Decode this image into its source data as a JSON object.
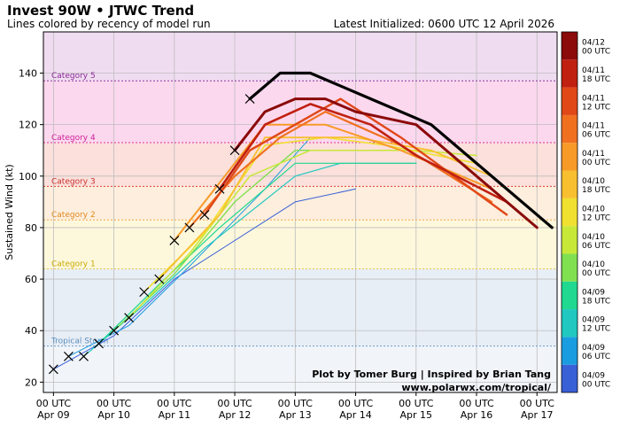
{
  "header": {
    "title": "Invest 90W • JTWC Trend",
    "subtitle": "Lines colored by recency of model run",
    "latest": "Latest Initialized: 0600 UTC 12 April 2026"
  },
  "credits": {
    "line1": "Plot by Tomer Burg | Inspired by Brian Tang",
    "line2": "www.polarwx.com/tropical/"
  },
  "chart_data": {
    "type": "line",
    "title": "Invest 90W • JTWC Trend",
    "ylabel": "Sustained Wind (kt)",
    "xlabel": "",
    "x_unit": "hours since 00 UTC Apr 09",
    "xlim": [
      -4,
      200
    ],
    "ylim": [
      16,
      156
    ],
    "x_ticks": [
      {
        "x": 0,
        "line1": "00 UTC",
        "line2": "Apr 09"
      },
      {
        "x": 24,
        "line1": "00 UTC",
        "line2": "Apr 10"
      },
      {
        "x": 48,
        "line1": "00 UTC",
        "line2": "Apr 11"
      },
      {
        "x": 72,
        "line1": "00 UTC",
        "line2": "Apr 12"
      },
      {
        "x": 96,
        "line1": "00 UTC",
        "line2": "Apr 13"
      },
      {
        "x": 120,
        "line1": "00 UTC",
        "line2": "Apr 14"
      },
      {
        "x": 144,
        "line1": "00 UTC",
        "line2": "Apr 15"
      },
      {
        "x": 168,
        "line1": "00 UTC",
        "line2": "Apr 16"
      },
      {
        "x": 192,
        "line1": "00 UTC",
        "line2": "Apr 17"
      }
    ],
    "y_ticks": [
      20,
      40,
      60,
      80,
      100,
      120,
      140
    ],
    "grid": true,
    "categories": [
      {
        "name": "Tropical Storm",
        "threshold": 34,
        "band": [
          34,
          64
        ],
        "band_color": "#e8eef5",
        "line_color": "#6a9bc8",
        "label_color": "#5b8fc0"
      },
      {
        "name": "Category 1",
        "threshold": 64,
        "band": [
          64,
          83
        ],
        "band_color": "#fdf8dc",
        "line_color": "#e6c84a",
        "label_color": "#c9a800"
      },
      {
        "name": "Category 2",
        "threshold": 83,
        "band": [
          83,
          96
        ],
        "band_color": "#fdeedd",
        "line_color": "#f2a54a",
        "label_color": "#e08a20"
      },
      {
        "name": "Category 3",
        "threshold": 96,
        "band": [
          96,
          113
        ],
        "band_color": "#fbe0dc",
        "line_color": "#e04030",
        "label_color": "#c8302a"
      },
      {
        "name": "Category 4",
        "threshold": 113,
        "band": [
          113,
          137
        ],
        "band_color": "#fbd8ee",
        "line_color": "#e030a0",
        "label_color": "#d0209a"
      },
      {
        "name": "Category 5",
        "threshold": 137,
        "band": [
          137,
          156
        ],
        "band_color": "#f0dcf0",
        "line_color": "#9030a0",
        "label_color": "#8a2a9a"
      }
    ],
    "below_ts_color": "#f1f5fa",
    "observed": {
      "marker": "x",
      "points": [
        [
          0,
          25
        ],
        [
          6,
          30
        ],
        [
          12,
          30
        ],
        [
          18,
          35
        ],
        [
          24,
          40
        ],
        [
          30,
          45
        ],
        [
          36,
          55
        ],
        [
          42,
          60
        ],
        [
          48,
          75
        ],
        [
          54,
          80
        ],
        [
          60,
          85
        ],
        [
          66,
          95
        ],
        [
          72,
          110
        ],
        [
          78,
          130
        ]
      ]
    },
    "colorbar": {
      "labels": [
        "04/09 00 UTC",
        "04/09 06 UTC",
        "04/09 12 UTC",
        "04/09 18 UTC",
        "04/10 00 UTC",
        "04/10 06 UTC",
        "04/10 12 UTC",
        "04/10 18 UTC",
        "04/11 00 UTC",
        "04/11 06 UTC",
        "04/11 12 UTC",
        "04/11 18 UTC",
        "04/12 00 UTC"
      ],
      "colors": [
        "#3a60d8",
        "#1a9ce0",
        "#20c8c0",
        "#20d890",
        "#80e050",
        "#c8e838",
        "#f0e030",
        "#f8c030",
        "#f89a28",
        "#f07020",
        "#e04818",
        "#c02010",
        "#8b0a0a"
      ]
    },
    "series": [
      {
        "run": "04/09 00 UTC",
        "color": "#3a60d8",
        "width": 1,
        "points": [
          [
            0,
            25
          ],
          [
            24,
            38
          ],
          [
            48,
            60
          ],
          [
            96,
            90
          ],
          [
            120,
            95
          ]
        ]
      },
      {
        "run": "04/09 06 UTC",
        "color": "#1a9ce0",
        "width": 1,
        "points": [
          [
            6,
            30
          ],
          [
            30,
            42
          ],
          [
            54,
            65
          ],
          [
            84,
            95
          ],
          [
            102,
            115
          ]
        ]
      },
      {
        "run": "04/09 12 UTC",
        "color": "#20c8c0",
        "width": 1.2,
        "points": [
          [
            12,
            30
          ],
          [
            36,
            50
          ],
          [
            60,
            72
          ],
          [
            96,
            100
          ],
          [
            114,
            105
          ],
          [
            144,
            105
          ]
        ]
      },
      {
        "run": "04/09 18 UTC",
        "color": "#20d890",
        "width": 1.2,
        "points": [
          [
            18,
            35
          ],
          [
            42,
            58
          ],
          [
            66,
            80
          ],
          [
            96,
            105
          ],
          [
            144,
            105
          ]
        ]
      },
      {
        "run": "04/10 00 UTC",
        "color": "#80e050",
        "width": 1.4,
        "points": [
          [
            24,
            40
          ],
          [
            48,
            62
          ],
          [
            72,
            90
          ],
          [
            96,
            110
          ],
          [
            144,
            110
          ]
        ]
      },
      {
        "run": "04/10 06 UTC",
        "color": "#c8e838",
        "width": 1.5,
        "points": [
          [
            30,
            45
          ],
          [
            54,
            70
          ],
          [
            78,
            100
          ],
          [
            102,
            110
          ],
          [
            144,
            110
          ],
          [
            168,
            108
          ]
        ]
      },
      {
        "run": "04/10 12 UTC",
        "color": "#f0e030",
        "width": 1.6,
        "points": [
          [
            36,
            55
          ],
          [
            60,
            78
          ],
          [
            84,
            112
          ],
          [
            108,
            115
          ],
          [
            132,
            112
          ],
          [
            168,
            105
          ]
        ]
      },
      {
        "run": "04/10 18 UTC",
        "color": "#f8c030",
        "width": 1.8,
        "points": [
          [
            42,
            60
          ],
          [
            66,
            85
          ],
          [
            84,
            115
          ],
          [
            120,
            115
          ],
          [
            150,
            110
          ],
          [
            174,
            100
          ]
        ]
      },
      {
        "run": "04/11 00 UTC",
        "color": "#f89a28",
        "width": 2,
        "points": [
          [
            48,
            75
          ],
          [
            72,
            105
          ],
          [
            84,
            120
          ],
          [
            108,
            120
          ],
          [
            138,
            110
          ],
          [
            174,
            95
          ]
        ]
      },
      {
        "run": "04/11 06 UTC",
        "color": "#f07020",
        "width": 2.2,
        "points": [
          [
            54,
            80
          ],
          [
            72,
            100
          ],
          [
            90,
            115
          ],
          [
            108,
            125
          ],
          [
            138,
            112
          ],
          [
            174,
            90
          ]
        ]
      },
      {
        "run": "04/11 12 UTC",
        "color": "#e04818",
        "width": 2.4,
        "points": [
          [
            60,
            85
          ],
          [
            78,
            110
          ],
          [
            96,
            120
          ],
          [
            114,
            130
          ],
          [
            138,
            115
          ],
          [
            180,
            85
          ]
        ]
      },
      {
        "run": "04/11 18 UTC",
        "color": "#c02010",
        "width": 2.6,
        "points": [
          [
            66,
            95
          ],
          [
            84,
            120
          ],
          [
            102,
            128
          ],
          [
            126,
            120
          ],
          [
            144,
            108
          ],
          [
            180,
            90
          ]
        ]
      },
      {
        "run": "04/12 00 UTC",
        "color": "#8b0a0a",
        "width": 3,
        "points": [
          [
            72,
            110
          ],
          [
            84,
            125
          ],
          [
            96,
            130
          ],
          [
            108,
            130
          ],
          [
            120,
            125
          ],
          [
            144,
            120
          ],
          [
            192,
            80
          ]
        ]
      },
      {
        "run": "04/12 06 UTC",
        "color": "#000000",
        "width": 3.2,
        "points": [
          [
            78,
            130
          ],
          [
            90,
            140
          ],
          [
            102,
            140
          ],
          [
            126,
            130
          ],
          [
            150,
            120
          ],
          [
            198,
            80
          ]
        ]
      }
    ]
  }
}
